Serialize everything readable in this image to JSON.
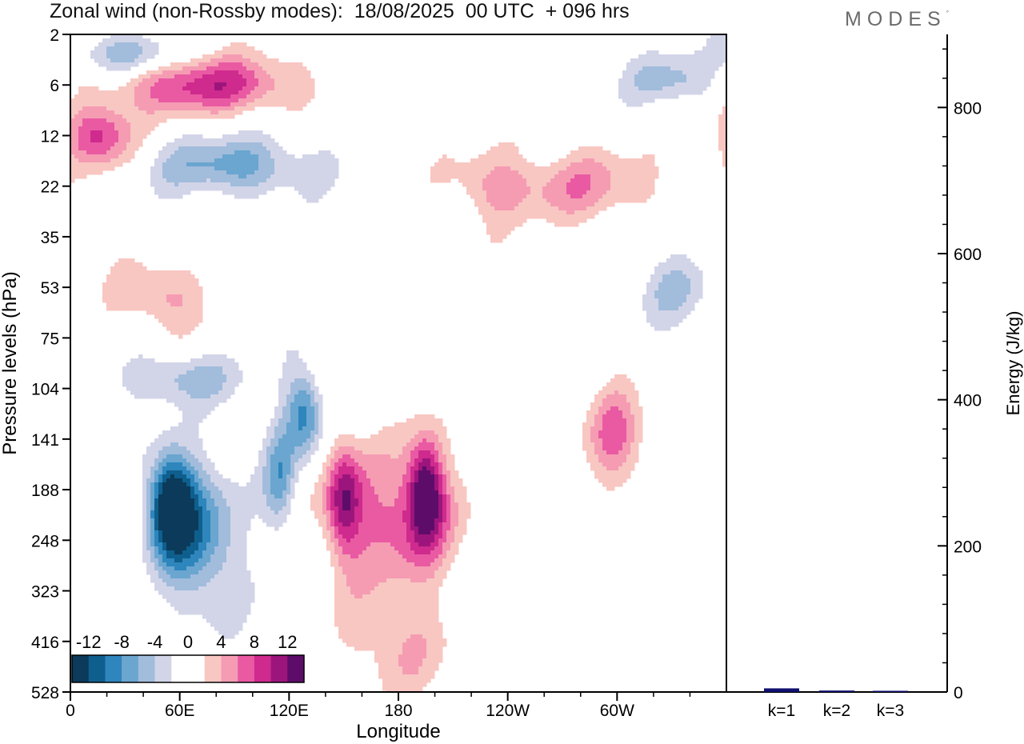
{
  "title": "Zonal wind (non-Rossby modes):  18/08/2025  00 UTC  + 096 hrs",
  "logo": "MODES",
  "logo_mark": "°",
  "colors": {
    "scale": [
      "#0b3a5a",
      "#0f5f8e",
      "#2e86bd",
      "#6aa6cf",
      "#a2bcdc",
      "#d2d5e8",
      "#ffffff",
      "#ffffff",
      "#f8c7c2",
      "#f59cb3",
      "#e95aa3",
      "#cf2a8d",
      "#9c157c",
      "#5e0c6a"
    ],
    "frame": "#000000",
    "bar": "#101070"
  },
  "chart_data": [
    {
      "type": "heatmap",
      "title": "Zonal wind (non-Rossby modes):  18/08/2025  00 UTC  + 096 hrs",
      "xlabel": "Longitude",
      "ylabel": "Pressure levels (hPa)",
      "x_ticks": [
        "0",
        "60E",
        "120E",
        "180",
        "120W",
        "60W"
      ],
      "x_tick_values": [
        0,
        60,
        120,
        180,
        240,
        300
      ],
      "x_range": [
        0,
        360
      ],
      "y_ticks": [
        "2",
        "6",
        "12",
        "22",
        "35",
        "53",
        "75",
        "104",
        "141",
        "188",
        "248",
        "323",
        "416",
        "528"
      ],
      "colorbar_labels": [
        "-12",
        "-8",
        "-4",
        "0",
        "4",
        "8",
        "12"
      ],
      "colorbar_levels": [
        -14,
        -12,
        -10,
        -8,
        -6,
        -4,
        -2,
        0,
        2,
        4,
        6,
        8,
        10,
        12,
        14
      ],
      "features": [
        {
          "lon": 55,
          "level_index": 9.3,
          "value": -15,
          "lon_width": 18,
          "level_width": 1.4
        },
        {
          "lon": 72,
          "level_index": 10.0,
          "value": -8,
          "lon_width": 30,
          "level_width": 2.0
        },
        {
          "lon": 128,
          "level_index": 7.5,
          "value": -9,
          "lon_width": 14,
          "level_width": 1.2
        },
        {
          "lon": 115,
          "level_index": 8.8,
          "value": -7,
          "lon_width": 12,
          "level_width": 1.5
        },
        {
          "lon": 150,
          "level_index": 9.2,
          "value": 10,
          "lon_width": 14,
          "level_width": 1.6
        },
        {
          "lon": 195,
          "level_index": 9.0,
          "value": 12,
          "lon_width": 14,
          "level_width": 1.5
        },
        {
          "lon": 180,
          "level_index": 9.6,
          "value": 7,
          "lon_width": 45,
          "level_width": 1.8
        },
        {
          "lon": 178,
          "level_index": 12.0,
          "value": 4,
          "lon_width": 40,
          "level_width": 1.5
        },
        {
          "lon": 300,
          "level_index": 8.0,
          "value": 7,
          "lon_width": 22,
          "level_width": 1.3
        },
        {
          "lon": 75,
          "level_index": 1.0,
          "value": 9,
          "lon_width": 70,
          "level_width": 0.8
        },
        {
          "lon": 15,
          "level_index": 2.0,
          "value": 9,
          "lon_width": 25,
          "level_width": 0.9
        },
        {
          "lon": 90,
          "level_index": 2.6,
          "value": -7,
          "lon_width": 60,
          "level_width": 0.8
        },
        {
          "lon": 30,
          "level_index": 0.4,
          "value": -6,
          "lon_width": 40,
          "level_width": 0.6
        },
        {
          "lon": 280,
          "level_index": 3.0,
          "value": 5,
          "lon_width": 60,
          "level_width": 1.0
        },
        {
          "lon": 330,
          "level_index": 5.0,
          "value": -4,
          "lon_width": 30,
          "level_width": 1.0
        },
        {
          "lon": 50,
          "level_index": 5.2,
          "value": 5,
          "lon_width": 35,
          "level_width": 0.9
        },
        {
          "lon": 60,
          "level_index": 6.8,
          "value": -5,
          "lon_width": 50,
          "level_width": 0.7
        },
        {
          "lon": 230,
          "level_index": 3.0,
          "value": 4,
          "lon_width": 30,
          "level_width": 1.0
        },
        {
          "lon": 330,
          "level_index": 0.9,
          "value": -5,
          "lon_width": 35,
          "level_width": 0.7
        }
      ]
    },
    {
      "type": "bar",
      "ylabel": "Energy (J/kg)",
      "categories": [
        "k=1",
        "k=2",
        "k=3"
      ],
      "values": [
        5,
        2,
        1.5
      ],
      "ylim": [
        0,
        900
      ],
      "y_ticks": [
        "0",
        "200",
        "400",
        "600",
        "800"
      ],
      "y_tick_values": [
        0,
        200,
        400,
        600,
        800
      ]
    }
  ]
}
